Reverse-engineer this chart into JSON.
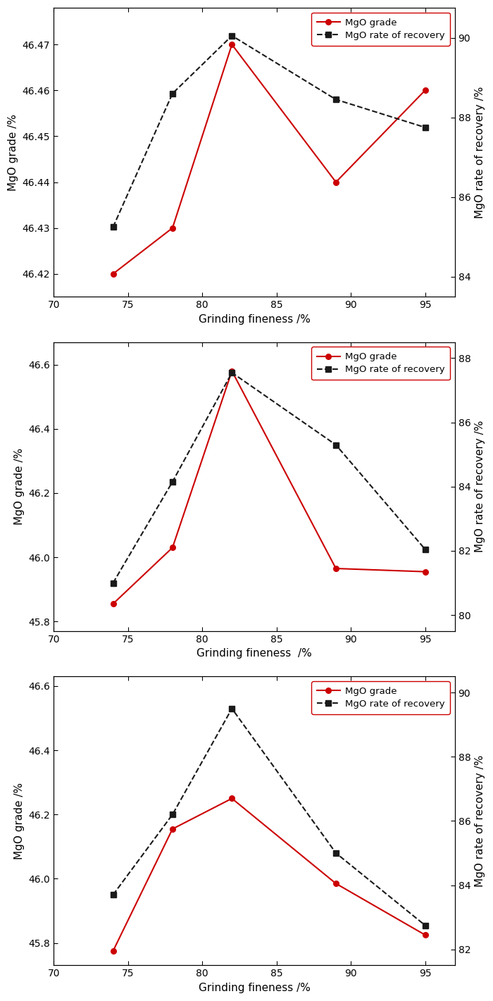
{
  "x": [
    74,
    78,
    82,
    89,
    95
  ],
  "subplots": [
    {
      "grade": [
        46.42,
        46.43,
        46.47,
        46.44,
        46.46
      ],
      "recovery": [
        85.25,
        88.6,
        90.05,
        88.45,
        87.75
      ],
      "grade_ylim": [
        46.415,
        46.478
      ],
      "grade_yticks": [
        46.42,
        46.43,
        46.44,
        46.45,
        46.46,
        46.47
      ],
      "recovery_ylim": [
        83.5,
        90.75
      ],
      "recovery_yticks": [
        84,
        86,
        88,
        90
      ],
      "xlabel": "Grinding fineness /%",
      "ylabel_left": "MgO grade /%",
      "ylabel_right": "MgO rate of recovery /%"
    },
    {
      "grade": [
        45.855,
        46.03,
        46.58,
        45.965,
        45.955
      ],
      "recovery": [
        81.0,
        84.15,
        87.55,
        85.3,
        82.05
      ],
      "grade_ylim": [
        45.77,
        46.67
      ],
      "grade_yticks": [
        45.8,
        46.0,
        46.2,
        46.4,
        46.6
      ],
      "recovery_ylim": [
        79.5,
        88.5
      ],
      "recovery_yticks": [
        80,
        82,
        84,
        86,
        88
      ],
      "xlabel": "Grinding fineness  /%",
      "ylabel_left": "MgO grade /%",
      "ylabel_right": "MgO rate of recovery /%"
    },
    {
      "grade": [
        45.775,
        46.155,
        46.25,
        45.985,
        45.825
      ],
      "recovery": [
        83.7,
        86.2,
        89.5,
        85.0,
        82.75
      ],
      "grade_ylim": [
        45.73,
        46.63
      ],
      "grade_yticks": [
        45.8,
        46.0,
        46.2,
        46.4,
        46.6
      ],
      "recovery_ylim": [
        81.5,
        90.5
      ],
      "recovery_yticks": [
        82,
        84,
        86,
        88,
        90
      ],
      "xlabel": "Grinding fineness /%",
      "ylabel_left": "MgO grade /%",
      "ylabel_right": "MgO rate of recovery /%"
    }
  ],
  "legend_grade": "MgO grade",
  "legend_recovery": "MgO rate of recovery",
  "grade_color": "#cc0000",
  "recovery_color": "#1a1a1a",
  "grade_marker": "o",
  "recovery_marker": "s",
  "linewidth": 1.5,
  "markersize": 5.5,
  "tick_labelsize": 10,
  "axis_labelsize": 11,
  "legend_fontsize": 9.5
}
